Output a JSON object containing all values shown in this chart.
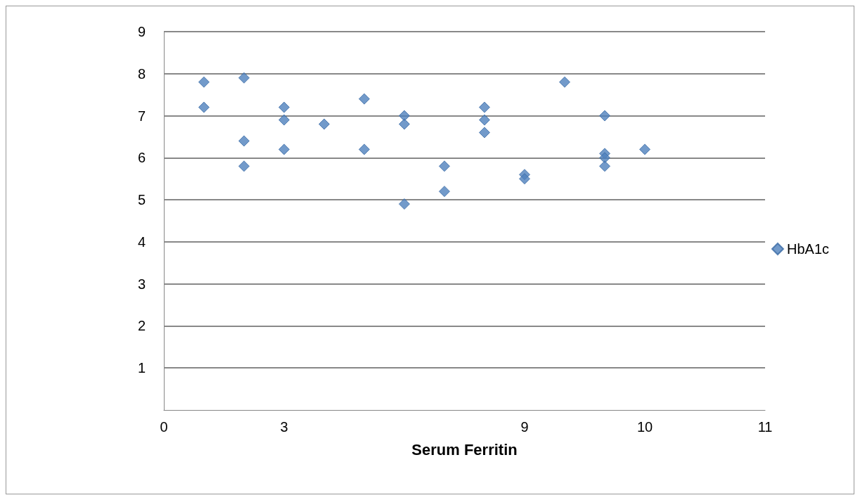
{
  "chart_data": {
    "type": "scatter",
    "xlabel": "Serum Ferritin",
    "categories": [
      "0",
      null,
      null,
      "3",
      null,
      null,
      null,
      null,
      null,
      "9",
      null,
      null,
      "10",
      null,
      null,
      "11"
    ],
    "series": [
      {
        "name": "HbA1c",
        "color": "#4f81bd",
        "values": [
          null,
          7.8,
          7.9,
          7.2,
          6.8,
          7.4,
          7.0,
          5.8,
          7.2,
          5.6,
          7.8,
          7.0,
          6.2,
          null,
          null,
          null
        ]
      },
      {
        "color": "#4f81bd",
        "values": [
          null,
          7.2,
          6.4,
          6.9,
          null,
          6.2,
          6.8,
          5.2,
          6.9,
          5.5,
          null,
          6.1,
          null,
          null,
          null,
          null
        ]
      },
      {
        "color": "#4f81bd",
        "values": [
          null,
          null,
          5.8,
          6.2,
          null,
          null,
          4.9,
          null,
          6.6,
          null,
          null,
          6.0,
          null,
          null,
          null,
          null
        ]
      },
      {
        "color": "#4f81bd",
        "values": [
          null,
          null,
          null,
          null,
          null,
          null,
          null,
          null,
          null,
          null,
          null,
          5.8,
          null,
          null,
          null,
          null
        ]
      }
    ],
    "ylim": [
      0,
      9
    ],
    "yticks": [
      1,
      2,
      3,
      4,
      5,
      6,
      7,
      8,
      9
    ],
    "grid": "y",
    "legend": "right",
    "marker": "diamond"
  }
}
